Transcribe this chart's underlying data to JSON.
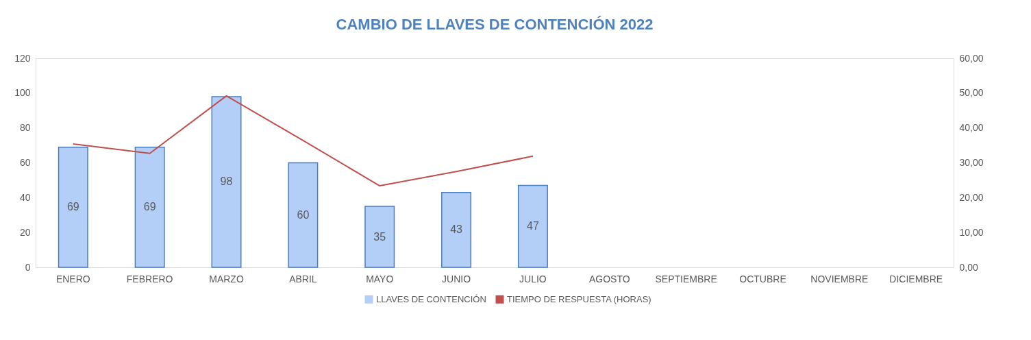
{
  "chart_data": {
    "type": "bar",
    "title": "CAMBIO  DE LLAVES  DE CONTENCIÓN  2022",
    "categories": [
      "ENERO",
      "FEBRERO",
      "MARZO",
      "ABRIL",
      "MAYO",
      "JUNIO",
      "JULIO",
      "AGOSTO",
      "SEPTIEMBRE",
      "OCTUBRE",
      "NOVIEMBRE",
      "DICIEMBRE"
    ],
    "series": [
      {
        "name": "LLAVES DE CONTENCIÓN",
        "color": "#b4cff7",
        "values": [
          69,
          69,
          98,
          60,
          35,
          43,
          47,
          null,
          null,
          null,
          null,
          null
        ],
        "value_labels": [
          "69",
          "69",
          "98",
          "60",
          "35",
          "43",
          "47",
          null,
          null,
          null,
          null,
          null
        ]
      },
      {
        "name": "TIEMPO DE RESPUESTA (HORAS)",
        "type": "line",
        "axis": "y2",
        "color": "#c0504d",
        "values": [
          35.4,
          32.7,
          49.2,
          36.4,
          23.4,
          27.5,
          31.9,
          null,
          null,
          null,
          null,
          null
        ]
      }
    ],
    "ylim": [
      0,
      120
    ],
    "yticks": [
      0,
      20,
      40,
      60,
      80,
      100,
      120
    ],
    "y2lim": [
      0,
      60
    ],
    "y2ticks": [
      {
        "value": 0,
        "label": "0,00"
      },
      {
        "value": 10,
        "label": "10,00"
      },
      {
        "value": 20,
        "label": "20,00"
      },
      {
        "value": 30,
        "label": "30,00"
      },
      {
        "value": 40,
        "label": "40,00"
      },
      {
        "value": 50,
        "label": "50,00"
      },
      {
        "value": 60,
        "label": "60,00"
      }
    ],
    "grid": false,
    "legend": "bottom",
    "line_style": "solid",
    "marker": "none"
  }
}
